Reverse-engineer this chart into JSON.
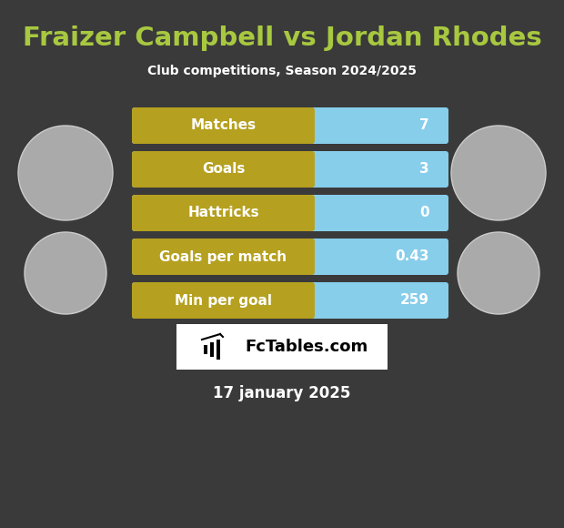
{
  "title": "Fraizer Campbell vs Jordan Rhodes",
  "subtitle": "Club competitions, Season 2024/2025",
  "date_text": "17 january 2025",
  "watermark": "FcTables.com",
  "background_color": "#3a3a3a",
  "title_color": "#a8c840",
  "subtitle_color": "#ffffff",
  "date_color": "#ffffff",
  "stats": [
    {
      "label": "Matches",
      "value": "7"
    },
    {
      "label": "Goals",
      "value": "3"
    },
    {
      "label": "Hattricks",
      "value": "0"
    },
    {
      "label": "Goals per match",
      "value": "0.43"
    },
    {
      "label": "Min per goal",
      "value": "259"
    }
  ],
  "bar_left_color": "#b5a020",
  "bar_right_color": "#87CEEB",
  "bar_text_color": "#ffffff",
  "fig_width": 6.2,
  "fig_height": 5.8,
  "dpi": 100
}
